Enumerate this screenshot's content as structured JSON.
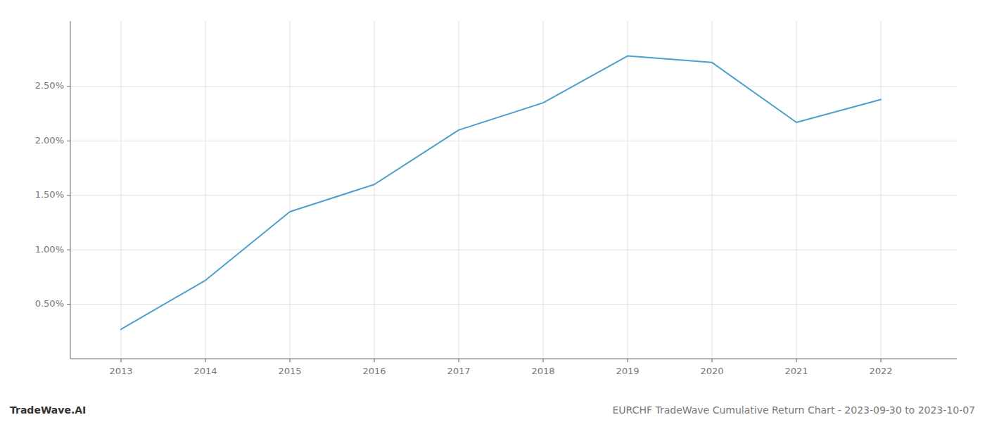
{
  "chart_data": {
    "type": "line",
    "x": [
      2013,
      2014,
      2015,
      2016,
      2017,
      2018,
      2019,
      2020,
      2021,
      2022
    ],
    "values": [
      0.0027,
      0.0072,
      0.0135,
      0.016,
      0.021,
      0.0235,
      0.0278,
      0.0272,
      0.0217,
      0.0238
    ],
    "color": "#4d9fcc",
    "xlim": [
      2012.4,
      2022.9
    ],
    "xticks": [
      2013,
      2014,
      2015,
      2016,
      2017,
      2018,
      2019,
      2020,
      2021,
      2022
    ],
    "ylim": [
      0.0,
      0.031
    ],
    "yticks": [
      {
        "value": 0.005,
        "label": "0.50%"
      },
      {
        "value": 0.01,
        "label": "1.00%"
      },
      {
        "value": 0.015,
        "label": "1.50%"
      },
      {
        "value": 0.02,
        "label": "2.00%"
      },
      {
        "value": 0.025,
        "label": "2.50%"
      }
    ],
    "grid": true,
    "annotations": [
      "TradeWave.AI",
      "EURCHF TradeWave Cumulative Return Chart - 2023-09-30 to 2023-10-07"
    ]
  }
}
